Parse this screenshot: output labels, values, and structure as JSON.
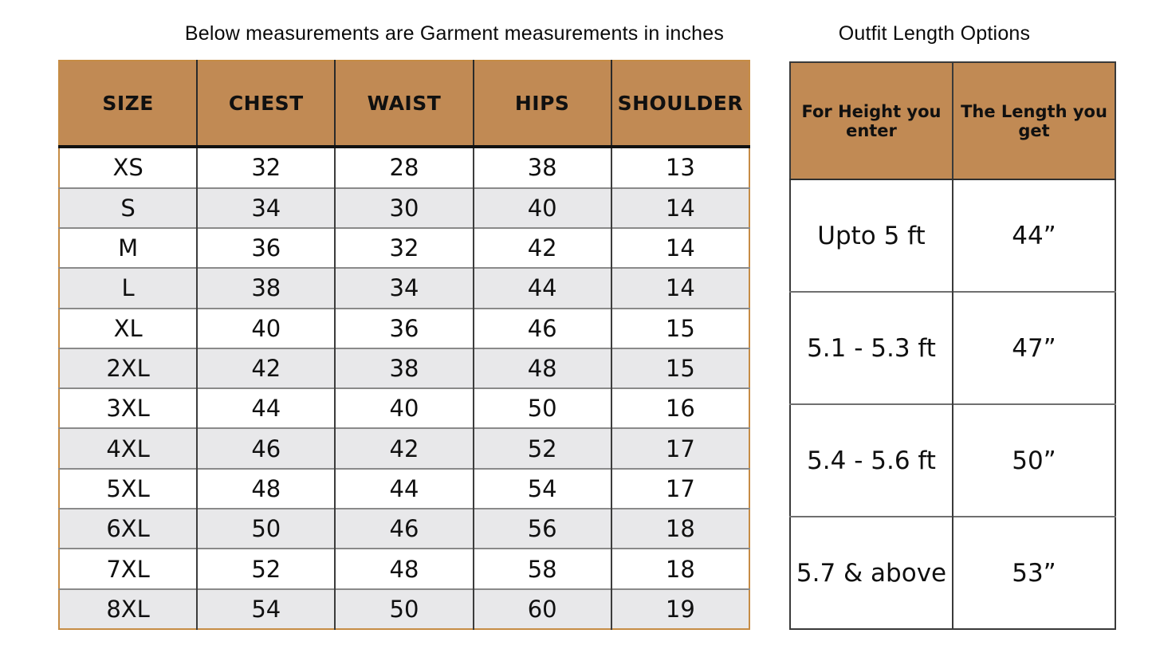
{
  "chart_data": [
    {
      "type": "table",
      "title": "Below measurements are Garment measurements in inches",
      "columns": [
        "SIZE",
        "CHEST",
        "WAIST",
        "HIPS",
        "SHOULDER"
      ],
      "rows": [
        [
          "XS",
          "32",
          "28",
          "38",
          "13"
        ],
        [
          "S",
          "34",
          "30",
          "40",
          "14"
        ],
        [
          "M",
          "36",
          "32",
          "42",
          "14"
        ],
        [
          "L",
          "38",
          "34",
          "44",
          "14"
        ],
        [
          "XL",
          "40",
          "36",
          "46",
          "15"
        ],
        [
          "2XL",
          "42",
          "38",
          "48",
          "15"
        ],
        [
          "3XL",
          "44",
          "40",
          "50",
          "16"
        ],
        [
          "4XL",
          "46",
          "42",
          "52",
          "17"
        ],
        [
          "5XL",
          "48",
          "44",
          "54",
          "17"
        ],
        [
          "6XL",
          "50",
          "46",
          "56",
          "18"
        ],
        [
          "7XL",
          "52",
          "48",
          "58",
          "18"
        ],
        [
          "8XL",
          "54",
          "50",
          "60",
          "19"
        ]
      ],
      "layout_hints": {
        "striped": true,
        "units": "inches"
      }
    },
    {
      "type": "table",
      "title": "Outfit Length Options",
      "columns": [
        "For Height you enter",
        "The Length you get"
      ],
      "rows": [
        [
          "Upto 5 ft",
          "44”"
        ],
        [
          "5.1 - 5.3 ft",
          "47”"
        ],
        [
          "5.4 - 5.6 ft",
          "50”"
        ],
        [
          "5.7 & above",
          "53”"
        ]
      ],
      "layout_hints": {
        "striped": false,
        "units": "inches"
      }
    }
  ],
  "colors": {
    "header_bg": "#c18a54",
    "alt_row": "#e8e8ea",
    "left_border": "#c68c45",
    "grid_dark": "#3c3c3c",
    "grid_gray": "#8a8a8a",
    "header_rule": "#111111",
    "right_border": "#3a3a3a",
    "text": "#101010",
    "page_bg": "#ffffff"
  }
}
